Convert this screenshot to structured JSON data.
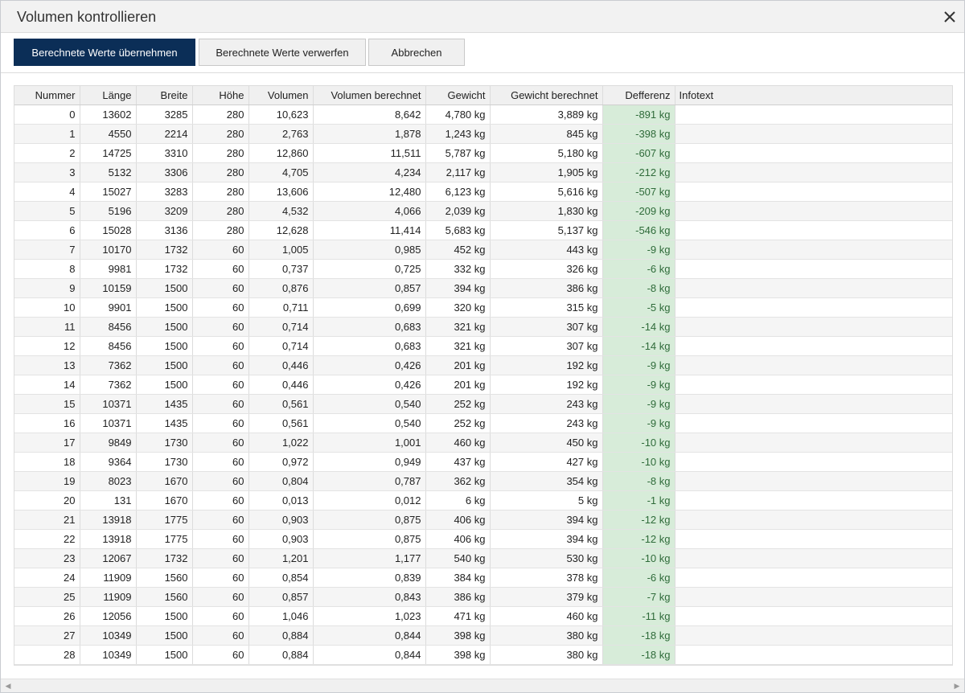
{
  "window": {
    "title": "Volumen kontrollieren"
  },
  "toolbar": {
    "apply_label": "Berechnete Werte übernehmen",
    "discard_label": "Berechnete Werte verwerfen",
    "cancel_label": "Abbrechen"
  },
  "table": {
    "columns": [
      "Nummer",
      "Länge",
      "Breite",
      "Höhe",
      "Volumen",
      "Volumen berechnet",
      "Gewicht",
      "Gewicht berechnet",
      "Defferenz",
      "Infotext"
    ],
    "rows": [
      [
        "0",
        "13602",
        "3285",
        "280",
        "10,623",
        "8,642",
        "4,780 kg",
        "3,889 kg",
        "-891 kg",
        ""
      ],
      [
        "1",
        "4550",
        "2214",
        "280",
        "2,763",
        "1,878",
        "1,243 kg",
        "845 kg",
        "-398 kg",
        ""
      ],
      [
        "2",
        "14725",
        "3310",
        "280",
        "12,860",
        "11,511",
        "5,787 kg",
        "5,180 kg",
        "-607 kg",
        ""
      ],
      [
        "3",
        "5132",
        "3306",
        "280",
        "4,705",
        "4,234",
        "2,117 kg",
        "1,905 kg",
        "-212 kg",
        ""
      ],
      [
        "4",
        "15027",
        "3283",
        "280",
        "13,606",
        "12,480",
        "6,123 kg",
        "5,616 kg",
        "-507 kg",
        ""
      ],
      [
        "5",
        "5196",
        "3209",
        "280",
        "4,532",
        "4,066",
        "2,039 kg",
        "1,830 kg",
        "-209 kg",
        ""
      ],
      [
        "6",
        "15028",
        "3136",
        "280",
        "12,628",
        "11,414",
        "5,683 kg",
        "5,137 kg",
        "-546 kg",
        ""
      ],
      [
        "7",
        "10170",
        "1732",
        "60",
        "1,005",
        "0,985",
        "452 kg",
        "443 kg",
        "-9 kg",
        ""
      ],
      [
        "8",
        "9981",
        "1732",
        "60",
        "0,737",
        "0,725",
        "332 kg",
        "326 kg",
        "-6 kg",
        ""
      ],
      [
        "9",
        "10159",
        "1500",
        "60",
        "0,876",
        "0,857",
        "394 kg",
        "386 kg",
        "-8 kg",
        ""
      ],
      [
        "10",
        "9901",
        "1500",
        "60",
        "0,711",
        "0,699",
        "320 kg",
        "315 kg",
        "-5 kg",
        ""
      ],
      [
        "11",
        "8456",
        "1500",
        "60",
        "0,714",
        "0,683",
        "321 kg",
        "307 kg",
        "-14 kg",
        ""
      ],
      [
        "12",
        "8456",
        "1500",
        "60",
        "0,714",
        "0,683",
        "321 kg",
        "307 kg",
        "-14 kg",
        ""
      ],
      [
        "13",
        "7362",
        "1500",
        "60",
        "0,446",
        "0,426",
        "201 kg",
        "192 kg",
        "-9 kg",
        ""
      ],
      [
        "14",
        "7362",
        "1500",
        "60",
        "0,446",
        "0,426",
        "201 kg",
        "192 kg",
        "-9 kg",
        ""
      ],
      [
        "15",
        "10371",
        "1435",
        "60",
        "0,561",
        "0,540",
        "252 kg",
        "243 kg",
        "-9 kg",
        ""
      ],
      [
        "16",
        "10371",
        "1435",
        "60",
        "0,561",
        "0,540",
        "252 kg",
        "243 kg",
        "-9 kg",
        ""
      ],
      [
        "17",
        "9849",
        "1730",
        "60",
        "1,022",
        "1,001",
        "460 kg",
        "450 kg",
        "-10 kg",
        ""
      ],
      [
        "18",
        "9364",
        "1730",
        "60",
        "0,972",
        "0,949",
        "437 kg",
        "427 kg",
        "-10 kg",
        ""
      ],
      [
        "19",
        "8023",
        "1670",
        "60",
        "0,804",
        "0,787",
        "362 kg",
        "354 kg",
        "-8 kg",
        ""
      ],
      [
        "20",
        "131",
        "1670",
        "60",
        "0,013",
        "0,012",
        "6 kg",
        "5 kg",
        "-1 kg",
        ""
      ],
      [
        "21",
        "13918",
        "1775",
        "60",
        "0,903",
        "0,875",
        "406 kg",
        "394 kg",
        "-12 kg",
        ""
      ],
      [
        "22",
        "13918",
        "1775",
        "60",
        "0,903",
        "0,875",
        "406 kg",
        "394 kg",
        "-12 kg",
        ""
      ],
      [
        "23",
        "12067",
        "1732",
        "60",
        "1,201",
        "1,177",
        "540 kg",
        "530 kg",
        "-10 kg",
        ""
      ],
      [
        "24",
        "11909",
        "1560",
        "60",
        "0,854",
        "0,839",
        "384 kg",
        "378 kg",
        "-6 kg",
        ""
      ],
      [
        "25",
        "11909",
        "1560",
        "60",
        "0,857",
        "0,843",
        "386 kg",
        "379 kg",
        "-7 kg",
        ""
      ],
      [
        "26",
        "12056",
        "1500",
        "60",
        "1,046",
        "1,023",
        "471 kg",
        "460 kg",
        "-11 kg",
        ""
      ],
      [
        "27",
        "10349",
        "1500",
        "60",
        "0,884",
        "0,844",
        "398 kg",
        "380 kg",
        "-18 kg",
        ""
      ],
      [
        "28",
        "10349",
        "1500",
        "60",
        "0,884",
        "0,844",
        "398 kg",
        "380 kg",
        "-18 kg",
        ""
      ]
    ]
  },
  "colors": {
    "primary": "#0b2e57",
    "diff_bg": "#d7ecd9",
    "diff_text": "#2f6b3a"
  },
  "icons": {
    "close": "close-icon",
    "scroll_left": "scroll-left-icon",
    "scroll_right": "scroll-right-icon"
  }
}
